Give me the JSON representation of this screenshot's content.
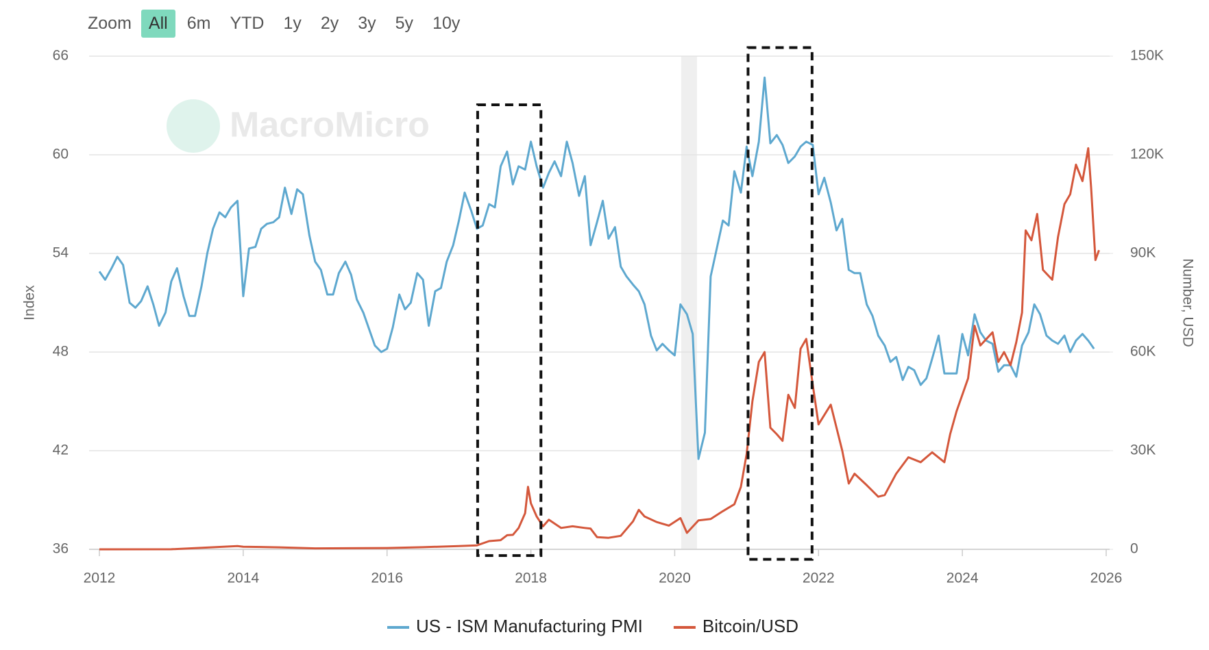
{
  "zoom": {
    "label": "Zoom",
    "buttons": [
      "All",
      "6m",
      "YTD",
      "1y",
      "2y",
      "3y",
      "5y",
      "10y"
    ],
    "selected": 0
  },
  "watermark": "MacroMicro",
  "chart_data": {
    "type": "line",
    "ylabel": "Index",
    "y2label": "Number, USD",
    "xlim": [
      2012,
      2026
    ],
    "xticks": [
      2012,
      2014,
      2016,
      2018,
      2020,
      2022,
      2024,
      2026
    ],
    "ylim": [
      36,
      66
    ],
    "yticks": [
      36,
      42,
      48,
      54,
      60,
      66
    ],
    "y2lim": [
      0,
      150000
    ],
    "y2ticks": [
      0,
      {
        "value": 30000,
        "label": "30K"
      },
      {
        "value": 60000,
        "label": "60K"
      },
      {
        "value": 90000,
        "label": "90K"
      },
      {
        "value": 120000,
        "label": "120K"
      },
      {
        "value": 150000,
        "label": "150K"
      }
    ],
    "grid": true,
    "legend": "bottom",
    "shaded_x": [
      2020.09,
      2020.31
    ],
    "highlight_boxes": [
      {
        "x": [
          2017.26,
          2018.14
        ],
        "y": [
          35.62,
          63.04
        ]
      },
      {
        "x": [
          2021.02,
          2021.91
        ],
        "y": [
          35.39,
          66.52
        ]
      }
    ],
    "series": [
      {
        "name": "US - ISM Manufacturing PMI",
        "color": "#5ea8cf",
        "axis": "y",
        "x": [
          2012,
          2012.08,
          2012.17,
          2012.25,
          2012.33,
          2012.42,
          2012.5,
          2012.58,
          2012.67,
          2012.75,
          2012.83,
          2012.92,
          2013,
          2013.08,
          2013.17,
          2013.25,
          2013.33,
          2013.42,
          2013.5,
          2013.58,
          2013.67,
          2013.75,
          2013.83,
          2013.92,
          2014,
          2014.08,
          2014.17,
          2014.25,
          2014.33,
          2014.42,
          2014.5,
          2014.58,
          2014.67,
          2014.75,
          2014.83,
          2014.92,
          2015,
          2015.08,
          2015.17,
          2015.25,
          2015.33,
          2015.42,
          2015.5,
          2015.58,
          2015.67,
          2015.75,
          2015.83,
          2015.92,
          2016,
          2016.08,
          2016.17,
          2016.25,
          2016.33,
          2016.42,
          2016.5,
          2016.58,
          2016.67,
          2016.75,
          2016.83,
          2016.92,
          2017,
          2017.08,
          2017.17,
          2017.25,
          2017.33,
          2017.42,
          2017.5,
          2017.58,
          2017.67,
          2017.75,
          2017.83,
          2017.92,
          2018,
          2018.08,
          2018.17,
          2018.25,
          2018.33,
          2018.42,
          2018.5,
          2018.58,
          2018.67,
          2018.75,
          2018.83,
          2018.92,
          2019,
          2019.08,
          2019.17,
          2019.25,
          2019.33,
          2019.42,
          2019.5,
          2019.58,
          2019.67,
          2019.75,
          2019.83,
          2019.92,
          2020,
          2020.08,
          2020.17,
          2020.25,
          2020.33,
          2020.42,
          2020.5,
          2020.58,
          2020.67,
          2020.75,
          2020.83,
          2020.92,
          2021,
          2021.08,
          2021.17,
          2021.25,
          2021.33,
          2021.42,
          2021.5,
          2021.58,
          2021.67,
          2021.75,
          2021.83,
          2021.92,
          2022,
          2022.08,
          2022.17,
          2022.25,
          2022.33,
          2022.42,
          2022.5,
          2022.58,
          2022.67,
          2022.75,
          2022.83,
          2022.92,
          2023,
          2023.08,
          2023.17,
          2023.25,
          2023.33,
          2023.42,
          2023.5,
          2023.58,
          2023.67,
          2023.75,
          2023.83,
          2023.92,
          2024,
          2024.08,
          2024.17,
          2024.25,
          2024.33,
          2024.42,
          2024.5,
          2024.58,
          2024.67,
          2024.75,
          2024.83,
          2024.92,
          2025,
          2025.08,
          2025.17,
          2025.25,
          2025.33,
          2025.42,
          2025.5,
          2025.58,
          2025.67,
          2025.75,
          2025.83
        ],
        "values": [
          52.9,
          52.4,
          53.1,
          53.8,
          53.3,
          51.0,
          50.7,
          51.1,
          52.0,
          50.9,
          49.6,
          50.4,
          52.3,
          53.1,
          51.4,
          50.2,
          50.2,
          52.0,
          54.0,
          55.5,
          56.5,
          56.2,
          56.8,
          57.2,
          51.4,
          54.3,
          54.4,
          55.5,
          55.8,
          55.9,
          56.2,
          58.0,
          56.4,
          57.9,
          57.6,
          55.1,
          53.5,
          53.0,
          51.5,
          51.5,
          52.8,
          53.5,
          52.7,
          51.2,
          50.4,
          49.4,
          48.4,
          48.0,
          48.2,
          49.5,
          51.5,
          50.6,
          51.0,
          52.8,
          52.4,
          49.6,
          51.7,
          51.9,
          53.5,
          54.5,
          56.0,
          57.7,
          56.6,
          55.5,
          55.7,
          57.0,
          56.8,
          59.3,
          60.2,
          58.2,
          59.3,
          59.1,
          60.8,
          59.3,
          58.0,
          58.9,
          59.6,
          58.7,
          60.8,
          59.5,
          57.5,
          58.7,
          54.5,
          55.9,
          57.2,
          54.9,
          55.6,
          53.2,
          52.6,
          52.1,
          51.7,
          50.9,
          49.0,
          48.1,
          48.5,
          48.1,
          47.8,
          50.9,
          50.3,
          49.1,
          41.5,
          43.1,
          52.6,
          54.2,
          56.0,
          55.7,
          59.0,
          57.7,
          60.5,
          58.7,
          60.8,
          64.7,
          60.7,
          61.2,
          60.6,
          59.5,
          59.9,
          60.5,
          60.8,
          60.6,
          57.6,
          58.6,
          57.1,
          55.4,
          56.1,
          53.0,
          52.8,
          52.8,
          50.9,
          50.2,
          49.0,
          48.4,
          47.4,
          47.7,
          46.3,
          47.1,
          46.9,
          46.0,
          46.4,
          47.6,
          49.0,
          46.7,
          46.7,
          46.7,
          49.1,
          47.8,
          50.3,
          49.2,
          48.7,
          48.5,
          46.8,
          47.2,
          47.2,
          46.5,
          48.4,
          49.2,
          50.9,
          50.3,
          49.0,
          48.7,
          48.5,
          49.0,
          48.0,
          48.7,
          49.1,
          48.7,
          48.2
        ]
      },
      {
        "name": "Bitcoin/USD",
        "color": "#d4573b",
        "axis": "y2",
        "x": [
          2012,
          2013,
          2013.92,
          2014,
          2014.5,
          2015,
          2016,
          2016.5,
          2017,
          2017.25,
          2017.42,
          2017.58,
          2017.67,
          2017.75,
          2017.83,
          2017.92,
          2017.96,
          2018,
          2018.08,
          2018.17,
          2018.25,
          2018.42,
          2018.58,
          2018.75,
          2018.83,
          2018.92,
          2019.08,
          2019.25,
          2019.42,
          2019.5,
          2019.58,
          2019.75,
          2019.92,
          2020.08,
          2020.17,
          2020.33,
          2020.5,
          2020.67,
          2020.83,
          2020.92,
          2021,
          2021.08,
          2021.17,
          2021.25,
          2021.33,
          2021.42,
          2021.5,
          2021.58,
          2021.67,
          2021.75,
          2021.83,
          2021.92,
          2022,
          2022.17,
          2022.33,
          2022.42,
          2022.5,
          2022.67,
          2022.83,
          2022.92,
          2023.08,
          2023.25,
          2023.42,
          2023.58,
          2023.75,
          2023.83,
          2023.92,
          2024.08,
          2024.17,
          2024.25,
          2024.42,
          2024.5,
          2024.58,
          2024.67,
          2024.75,
          2024.83,
          2024.88,
          2024.96,
          2025.04,
          2025.12,
          2025.25,
          2025.33,
          2025.42,
          2025.5,
          2025.58,
          2025.67,
          2025.75,
          2025.79,
          2025.85,
          2025.9
        ],
        "values": [
          5,
          13,
          1000,
          800,
          600,
          300,
          400,
          650,
          1000,
          1200,
          2500,
          2800,
          4300,
          4400,
          6500,
          11000,
          19000,
          14000,
          10000,
          7000,
          9000,
          6500,
          7000,
          6500,
          6300,
          3700,
          3500,
          4100,
          8500,
          12000,
          10000,
          8300,
          7200,
          9500,
          5000,
          8800,
          9200,
          11600,
          13700,
          19000,
          29000,
          45000,
          57000,
          60000,
          37000,
          35000,
          33000,
          47000,
          43000,
          61000,
          64000,
          50000,
          38000,
          44000,
          30000,
          20000,
          23000,
          19500,
          16000,
          16500,
          23000,
          28000,
          26500,
          29500,
          26500,
          35000,
          42000,
          52000,
          68000,
          62000,
          66000,
          57000,
          60000,
          56000,
          63000,
          72000,
          97000,
          94000,
          102000,
          85000,
          82000,
          95000,
          105000,
          108000,
          117000,
          112000,
          122000,
          110000,
          88000,
          91000
        ]
      }
    ]
  }
}
